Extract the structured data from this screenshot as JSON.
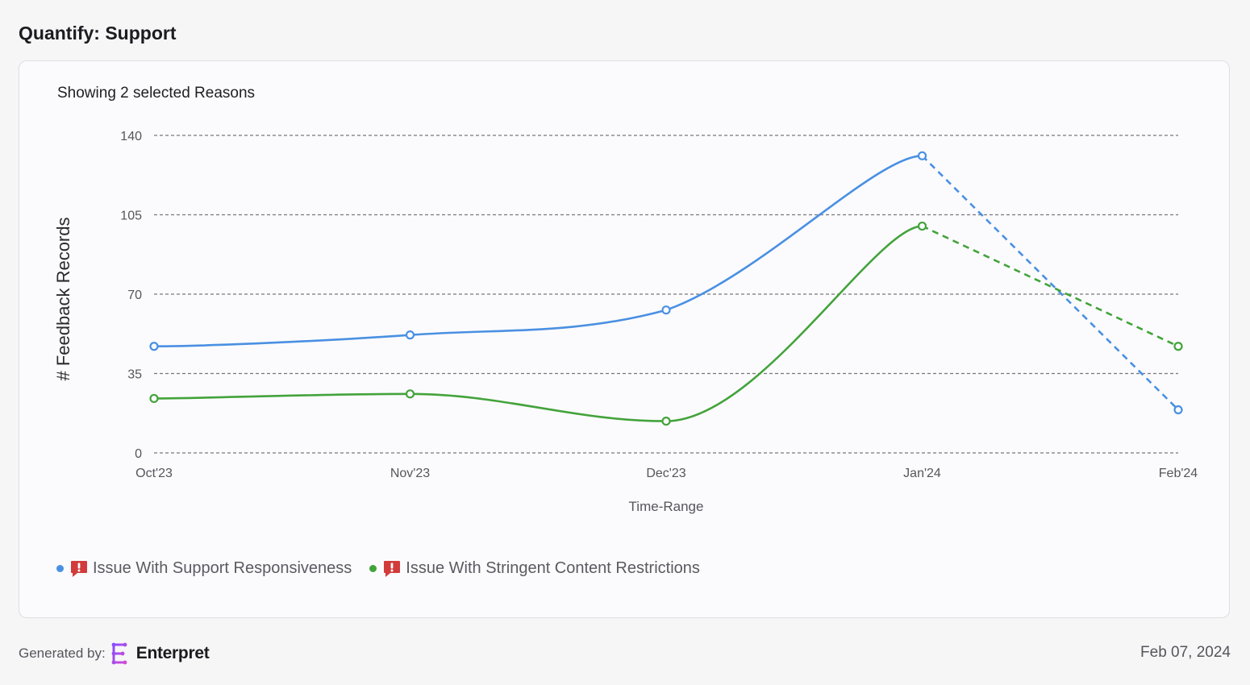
{
  "page": {
    "title": "Quantify: Support"
  },
  "card": {
    "subtitle": "Showing 2 selected Reasons"
  },
  "chart_data": {
    "type": "line",
    "x": [
      "Oct'23",
      "Nov'23",
      "Dec'23",
      "Jan'24",
      "Feb'24"
    ],
    "xlabel": "Time-Range",
    "ylabel": "# Feedback Records",
    "ylim": [
      0,
      140
    ],
    "yticks": [
      0,
      35,
      70,
      105,
      140
    ],
    "grid": true,
    "projected_last_segment": true,
    "series": [
      {
        "name": "Issue With Support Responsiveness",
        "color": "#4a90e2",
        "values": [
          47,
          52,
          63,
          131,
          19
        ]
      },
      {
        "name": "Issue With Stringent Content Restrictions",
        "color": "#43a33b",
        "values": [
          24,
          26,
          14,
          100,
          47
        ]
      }
    ]
  },
  "legend": {
    "icon": "alert-badge-icon",
    "items": [
      {
        "label": "Issue With Support Responsiveness",
        "color": "#4a90e2"
      },
      {
        "label": "Issue With Stringent Content Restrictions",
        "color": "#43a33b"
      }
    ]
  },
  "footer": {
    "generated_by_label": "Generated by:",
    "brand_name": "Enterpret",
    "date": "Feb 07, 2024"
  }
}
